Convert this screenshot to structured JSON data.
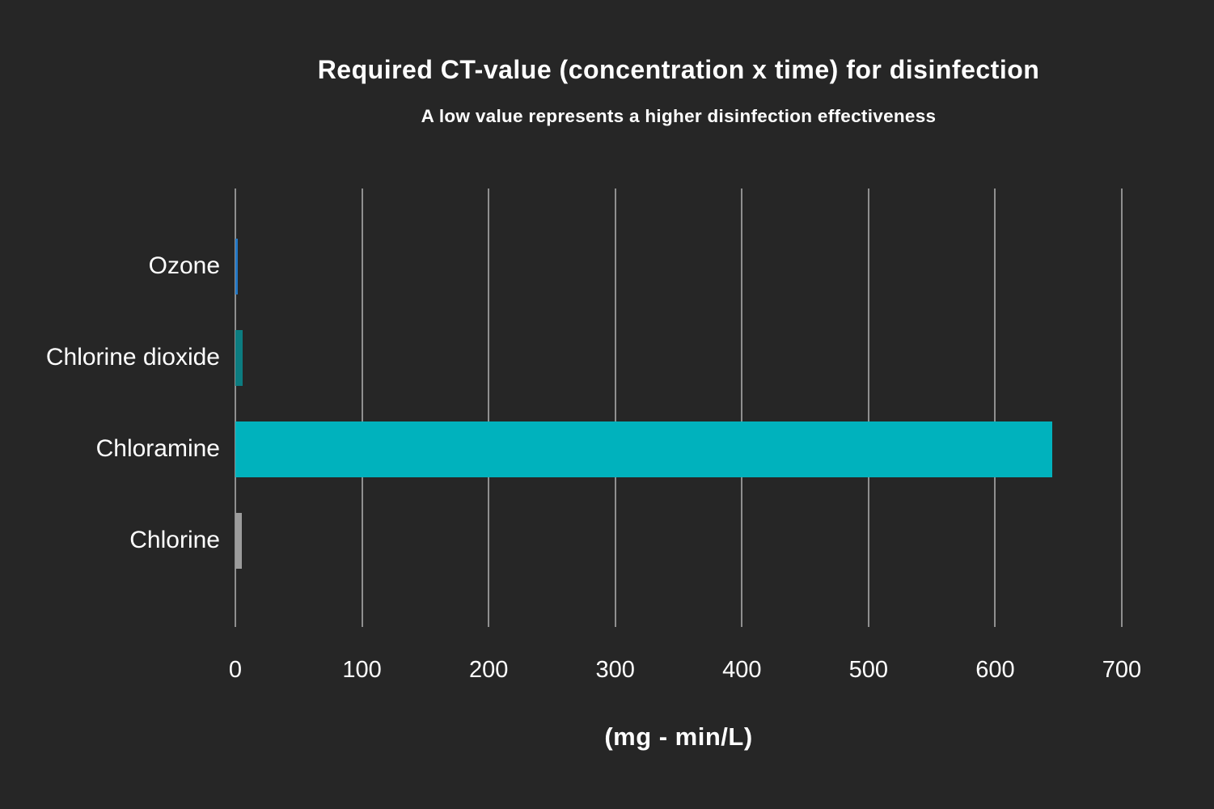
{
  "colors": {
    "background": "#262626",
    "gridline": "#8f8f8f",
    "text": "#ffffff"
  },
  "chart_data": {
    "type": "bar",
    "orientation": "horizontal",
    "title": "Required CT-value (concentration x time) for disinfection",
    "subtitle": "A low value represents a higher disinfection effectiveness",
    "xlabel": "(mg - min/L)",
    "categories": [
      "Ozone",
      "Chlorine dioxide",
      "Chloramine",
      "Chlorine"
    ],
    "values": [
      2,
      6,
      645,
      5
    ],
    "bar_colors": [
      "#2277c4",
      "#0c7c80",
      "#00b2bd",
      "#9c9c9c"
    ],
    "xlim": [
      0,
      700
    ],
    "xticks": [
      0,
      100,
      200,
      300,
      400,
      500,
      600,
      700
    ],
    "grid": "vertical-only",
    "legend": "none"
  }
}
